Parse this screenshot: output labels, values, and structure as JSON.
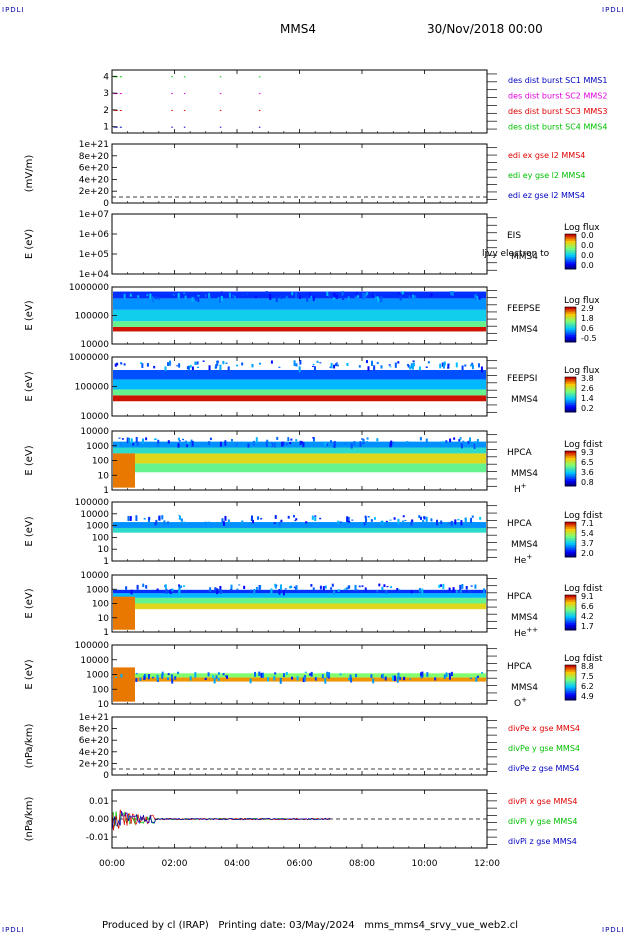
{
  "corner_tag": "IPDLI",
  "header": {
    "spacecraft": "MMS4",
    "date": "30/Nov/2018 00:00"
  },
  "footer": {
    "produced_by": "Produced by cl (IRAP)",
    "printing": "Printing date: 03/May/2024",
    "script": "mms_mms4_srvy_vue_web2.cl"
  },
  "colors": {
    "red": "#e00000",
    "green": "#00c000",
    "blue": "#0000c0",
    "magenta": "#e000e0",
    "frame": "#000000"
  },
  "chart_data": [
    {
      "id": "burst",
      "type": "scatter",
      "ylabel": "",
      "yticks": [
        "1",
        "2",
        "3",
        "4"
      ],
      "legend": [
        {
          "text": "des dist burst SC1 MMS1",
          "color": "#0000c0"
        },
        {
          "text": "des dist burst SC2 MMS2",
          "color": "#e000e0"
        },
        {
          "text": "des dist burst SC3 MMS3",
          "color": "#e00000"
        },
        {
          "text": "des dist burst SC4 MMS4",
          "color": "#00c000"
        }
      ],
      "series": [
        {
          "level": 4,
          "color": "#00c000",
          "x": [
            0.05,
            0.12,
            0.25,
            1.9,
            2.3,
            3.45,
            4.7
          ]
        },
        {
          "level": 3,
          "color": "#e000e0",
          "x": [
            0.05,
            0.12,
            0.25,
            1.9,
            2.3,
            3.45,
            4.7
          ]
        },
        {
          "level": 2,
          "color": "#e00000",
          "x": [
            0.05,
            0.12,
            0.25,
            1.9,
            2.3,
            3.45,
            4.7
          ]
        },
        {
          "level": 1,
          "color": "#0000c0",
          "x": [
            0.05,
            0.12,
            0.25,
            1.9,
            2.3,
            3.45,
            4.7
          ]
        }
      ]
    },
    {
      "id": "edi",
      "type": "line",
      "ylabel": "(mV/m)",
      "yticks": [
        "0",
        "2e+20",
        "4e+20",
        "6e+20",
        "8e+20",
        "1e+21"
      ],
      "legend": [
        {
          "text": "edi ex gse l2 MMS4",
          "color": "#e00000"
        },
        {
          "text": "edi ey gse l2 MMS4",
          "color": "#00c000"
        },
        {
          "text": "edi ez gse l2 MMS4",
          "color": "#0000c0"
        }
      ]
    },
    {
      "id": "eis",
      "type": "heatmap",
      "ylabel": "E (eV)",
      "yticks": [
        "1e+04",
        "1e+05",
        "1e+06",
        "1e+07"
      ],
      "inst": [
        "EIS",
        "MMS4"
      ],
      "overlay_text": "ljvy electron to",
      "colorbar": {
        "title": "Log flux",
        "labels": [
          "0.0",
          "0.0",
          "0.0",
          "0.0"
        ]
      }
    },
    {
      "id": "feepse",
      "type": "heatmap",
      "ylabel": "E (eV)",
      "yticks": [
        "10000",
        "100000",
        "1000000"
      ],
      "inst": [
        "FEEPSE",
        "MMS4"
      ],
      "colorbar": {
        "title": "Log flux",
        "labels": [
          "2.9",
          "1.8",
          "0.6",
          "-0.5"
        ]
      }
    },
    {
      "id": "feepsi",
      "type": "heatmap",
      "ylabel": "E (eV)",
      "yticks": [
        "10000",
        "100000",
        "1000000"
      ],
      "inst": [
        "FEEPSI",
        "MMS4"
      ],
      "colorbar": {
        "title": "Log flux",
        "labels": [
          "3.8",
          "2.6",
          "1.4",
          "0.2"
        ]
      }
    },
    {
      "id": "hpca_h",
      "type": "heatmap",
      "ylabel": "E (eV)",
      "yticks": [
        "1",
        "10",
        "100",
        "1000",
        "10000"
      ],
      "inst": [
        "HPCA",
        "MMS4"
      ],
      "species": "H",
      "species_sup": "+",
      "colorbar": {
        "title": "Log fdist",
        "labels": [
          "9.3",
          "6.5",
          "3.6",
          "0.8"
        ]
      }
    },
    {
      "id": "hpca_he",
      "type": "heatmap",
      "ylabel": "E (eV)",
      "yticks": [
        "1",
        "10",
        "100",
        "1000",
        "10000",
        "100000"
      ],
      "inst": [
        "HPCA",
        "MMS4"
      ],
      "species": "He",
      "species_sup": "+",
      "colorbar": {
        "title": "Log fdist",
        "labels": [
          "7.1",
          "5.4",
          "3.7",
          "2.0"
        ]
      }
    },
    {
      "id": "hpca_he2",
      "type": "heatmap",
      "ylabel": "E (eV)",
      "yticks": [
        "1",
        "10",
        "100",
        "1000",
        "10000"
      ],
      "inst": [
        "HPCA",
        "MMS4"
      ],
      "species": "He",
      "species_sup": "++",
      "colorbar": {
        "title": "Log fdist",
        "labels": [
          "9.1",
          "6.6",
          "4.2",
          "1.7"
        ]
      }
    },
    {
      "id": "hpca_o",
      "type": "heatmap",
      "ylabel": "E (eV)",
      "yticks": [
        "10",
        "100",
        "1000",
        "10000",
        "100000"
      ],
      "inst": [
        "HPCA",
        "MMS4"
      ],
      "species": "O",
      "species_sup": "+",
      "colorbar": {
        "title": "Log fdist",
        "labels": [
          "8.8",
          "7.5",
          "6.2",
          "4.9"
        ]
      }
    },
    {
      "id": "divpe",
      "type": "line",
      "ylabel": "(nPa/km)",
      "yticks": [
        "0",
        "2e+20",
        "4e+20",
        "6e+20",
        "8e+20",
        "1e+21"
      ],
      "legend": [
        {
          "text": "divPe x gse MMS4",
          "color": "#e00000"
        },
        {
          "text": "divPe y gse MMS4",
          "color": "#00c000"
        },
        {
          "text": "divPe z gse MMS4",
          "color": "#0000c0"
        }
      ]
    },
    {
      "id": "divpi",
      "type": "line",
      "ylabel": "(nPa/km)",
      "yticks": [
        "-0.01",
        "0.00",
        "0.01"
      ],
      "ylim": [
        -0.015,
        0.015
      ],
      "legend": [
        {
          "text": "divPi x gse MMS4",
          "color": "#e00000"
        },
        {
          "text": "divPi y gse MMS4",
          "color": "#00c000"
        },
        {
          "text": "divPi z gse MMS4",
          "color": "#0000c0"
        }
      ]
    }
  ],
  "time_axis": {
    "labels": [
      "00:00",
      "02:00",
      "04:00",
      "06:00",
      "08:00",
      "10:00",
      "12:00"
    ],
    "range_hours": [
      0,
      12
    ]
  }
}
